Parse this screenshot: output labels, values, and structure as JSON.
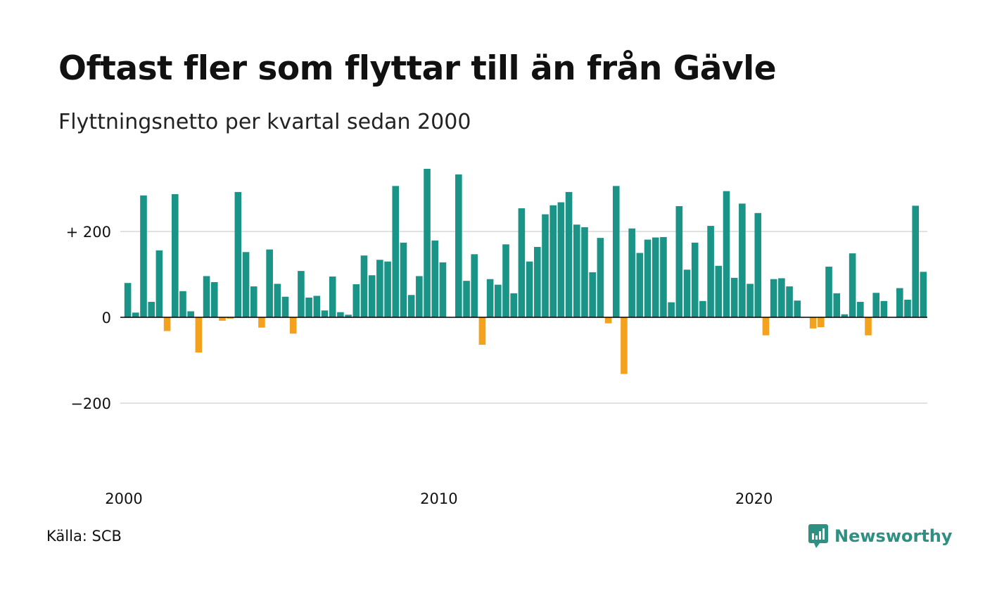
{
  "title": "Oftast fler som flyttar till än från Gävle",
  "subtitle": "Flyttningsnetto per kvartal sedan 2000",
  "source": "Källa: SCB",
  "brand": {
    "label": "Newsworthy",
    "icon": "newsworthy-logo-icon"
  },
  "colors": {
    "positive": "#1a9486",
    "negative": "#f4a11d",
    "grid": "#e1e1e1",
    "brand": "#2e8f82",
    "axis": "#000000"
  },
  "chart_data": {
    "type": "bar",
    "title": "Oftast fler som flyttar till än från Gävle",
    "subtitle": "Flyttningsnetto per kvartal sedan 2000",
    "xlabel": "",
    "ylabel": "",
    "ylim": [
      -350,
      350
    ],
    "yticks": [
      {
        "value": 200,
        "label": "+ 200"
      },
      {
        "value": 0,
        "label": "0"
      },
      {
        "value": -200,
        "label": "−200"
      }
    ],
    "x_start": "2000Q1",
    "x_ticks": [
      {
        "index": 0,
        "label": "2000"
      },
      {
        "index": 40,
        "label": "2010"
      },
      {
        "index": 80,
        "label": "2020"
      }
    ],
    "grid": true,
    "values": [
      80,
      11,
      284,
      36,
      156,
      -32,
      287,
      61,
      14,
      -82,
      96,
      82,
      -8,
      -3,
      292,
      152,
      72,
      -24,
      158,
      78,
      48,
      -38,
      108,
      46,
      50,
      16,
      95,
      12,
      6,
      77,
      144,
      98,
      134,
      130,
      306,
      174,
      52,
      96,
      346,
      179,
      128,
      0,
      333,
      85,
      147,
      -64,
      89,
      76,
      170,
      56,
      254,
      130,
      164,
      240,
      261,
      268,
      292,
      216,
      210,
      105,
      185,
      -14,
      306,
      -132,
      207,
      150,
      181,
      186,
      187,
      35,
      259,
      111,
      174,
      38,
      213,
      120,
      294,
      92,
      265,
      78,
      243,
      -42,
      89,
      91,
      72,
      39,
      0,
      -26,
      -23,
      118,
      56,
      7,
      149,
      36,
      -42,
      57,
      38,
      0,
      68,
      41,
      260,
      106
    ]
  }
}
